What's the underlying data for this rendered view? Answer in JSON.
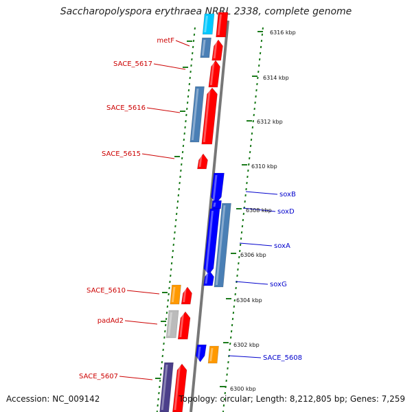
{
  "title": "Saccharopolyspora erythraea NRRL 2338, complete genome",
  "footer": {
    "accession": "Accession: NC_009142",
    "topology": "Topology: circular; Length: 8,212,805 bp; Genes: 7,259"
  },
  "colors": {
    "forward": "#ff0000",
    "reverse": "#0000ff",
    "steel": "#4a7fb5",
    "orange": "#ff9900",
    "gray": "#bbbbbb",
    "purple": "#4b3f8a",
    "cyan": "#00c8ff",
    "backbone": "#777777",
    "tick": "#1a7a1a",
    "label_left": "#cc0000",
    "label_right": "#0000cc"
  },
  "scale_labels": [
    "6316 kbp",
    "6314 kbp",
    "6312 kbp",
    "6310 kbp",
    "6308 kbp",
    "6306 kbp",
    "6304 kbp",
    "6302 kbp",
    "6300 kbp"
  ],
  "gene_labels_left": [
    "metF",
    "SACE_5617",
    "SACE_5616",
    "SACE_5615",
    "SACE_5610",
    "padAd2",
    "SACE_5607"
  ],
  "gene_labels_right": [
    "soxB",
    "soxD",
    "soxA",
    "soxG",
    "SACE_5608"
  ]
}
